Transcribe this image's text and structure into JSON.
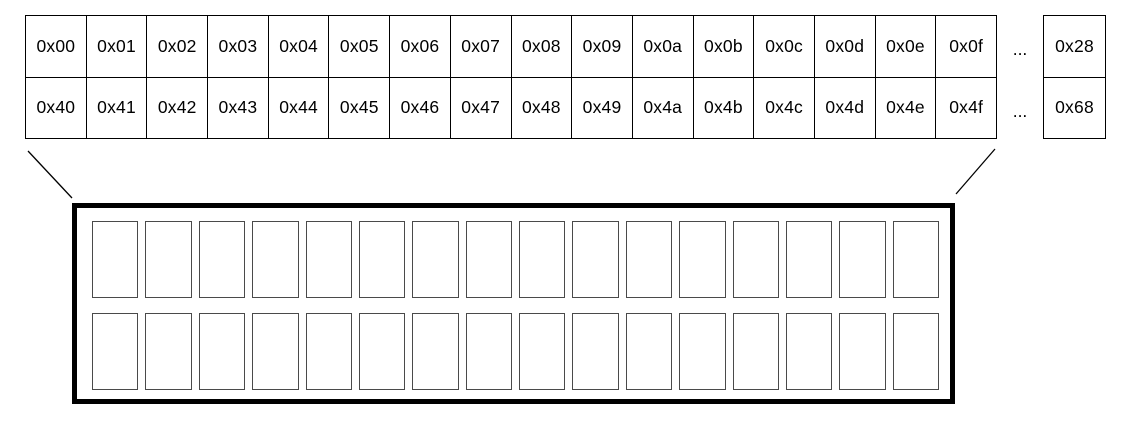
{
  "diagram": {
    "background": "#ffffff",
    "line_color": "#000000",
    "detail_border_color": "#000000",
    "slot_border_color": "#4a4a4a"
  },
  "memory_table": {
    "rows": [
      {
        "cells": [
          "0x00",
          "0x01",
          "0x02",
          "0x03",
          "0x04",
          "0x05",
          "0x06",
          "0x07",
          "0x08",
          "0x09",
          "0x0a",
          "0x0b",
          "0x0c",
          "0x0d",
          "0x0e",
          "0x0f"
        ],
        "ellipsis": "...",
        "last_cell": "0x28"
      },
      {
        "cells": [
          "0x40",
          "0x41",
          "0x42",
          "0x43",
          "0x44",
          "0x45",
          "0x46",
          "0x47",
          "0x48",
          "0x49",
          "0x4a",
          "0x4b",
          "0x4c",
          "0x4d",
          "0x4e",
          "0x4f"
        ],
        "ellipsis": "...",
        "last_cell": "0x68"
      }
    ]
  },
  "detail_box": {
    "rows": 2,
    "columns": 16
  }
}
